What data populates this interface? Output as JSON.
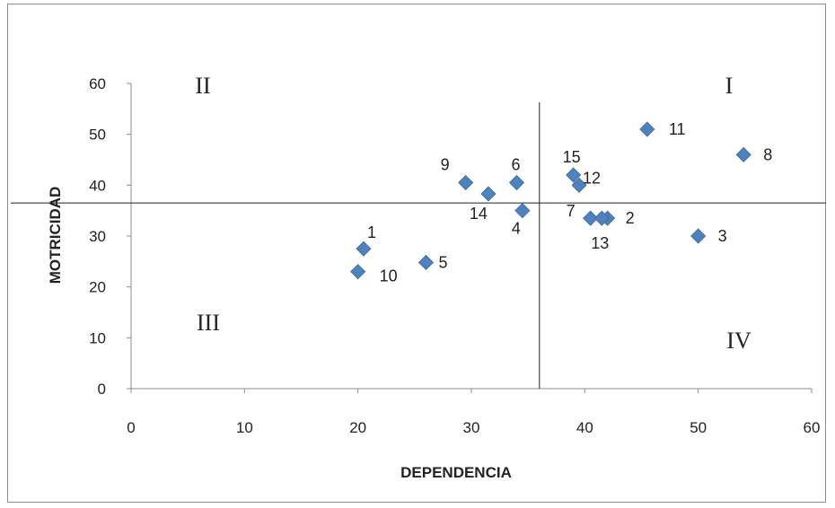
{
  "chart_data": {
    "type": "scatter",
    "xlabel": "DEPENDENCIA",
    "ylabel": "MOTRICIDAD",
    "xlim": [
      0,
      60
    ],
    "ylim": [
      0,
      60
    ],
    "xticks": [
      "0",
      "10",
      "20",
      "30",
      "40",
      "50",
      "60"
    ],
    "yticks": [
      "0",
      "10",
      "20",
      "30",
      "40",
      "50",
      "60"
    ],
    "grid": false,
    "marker_color": "#4F81BD",
    "reference_lines": {
      "x": 36,
      "y": 36.5
    },
    "quadrant_labels": [
      "I",
      "II",
      "III",
      "IV"
    ],
    "points": [
      {
        "label": "1",
        "x": 20.5,
        "y": 27.5
      },
      {
        "label": "2",
        "x": 42,
        "y": 33.5
      },
      {
        "label": "3",
        "x": 50,
        "y": 30
      },
      {
        "label": "4",
        "x": 34.5,
        "y": 35
      },
      {
        "label": "5",
        "x": 26,
        "y": 24.8
      },
      {
        "label": "6",
        "x": 34,
        "y": 40.5
      },
      {
        "label": "7",
        "x": 40.5,
        "y": 33.5
      },
      {
        "label": "8",
        "x": 54,
        "y": 46
      },
      {
        "label": "9",
        "x": 29.5,
        "y": 40.5
      },
      {
        "label": "10",
        "x": 20,
        "y": 23
      },
      {
        "label": "11",
        "x": 45.5,
        "y": 51
      },
      {
        "label": "12",
        "x": 39.5,
        "y": 40
      },
      {
        "label": "13",
        "x": 41.5,
        "y": 33.5
      },
      {
        "label": "14",
        "x": 31.5,
        "y": 38.3
      },
      {
        "label": "15",
        "x": 39,
        "y": 42
      }
    ]
  }
}
